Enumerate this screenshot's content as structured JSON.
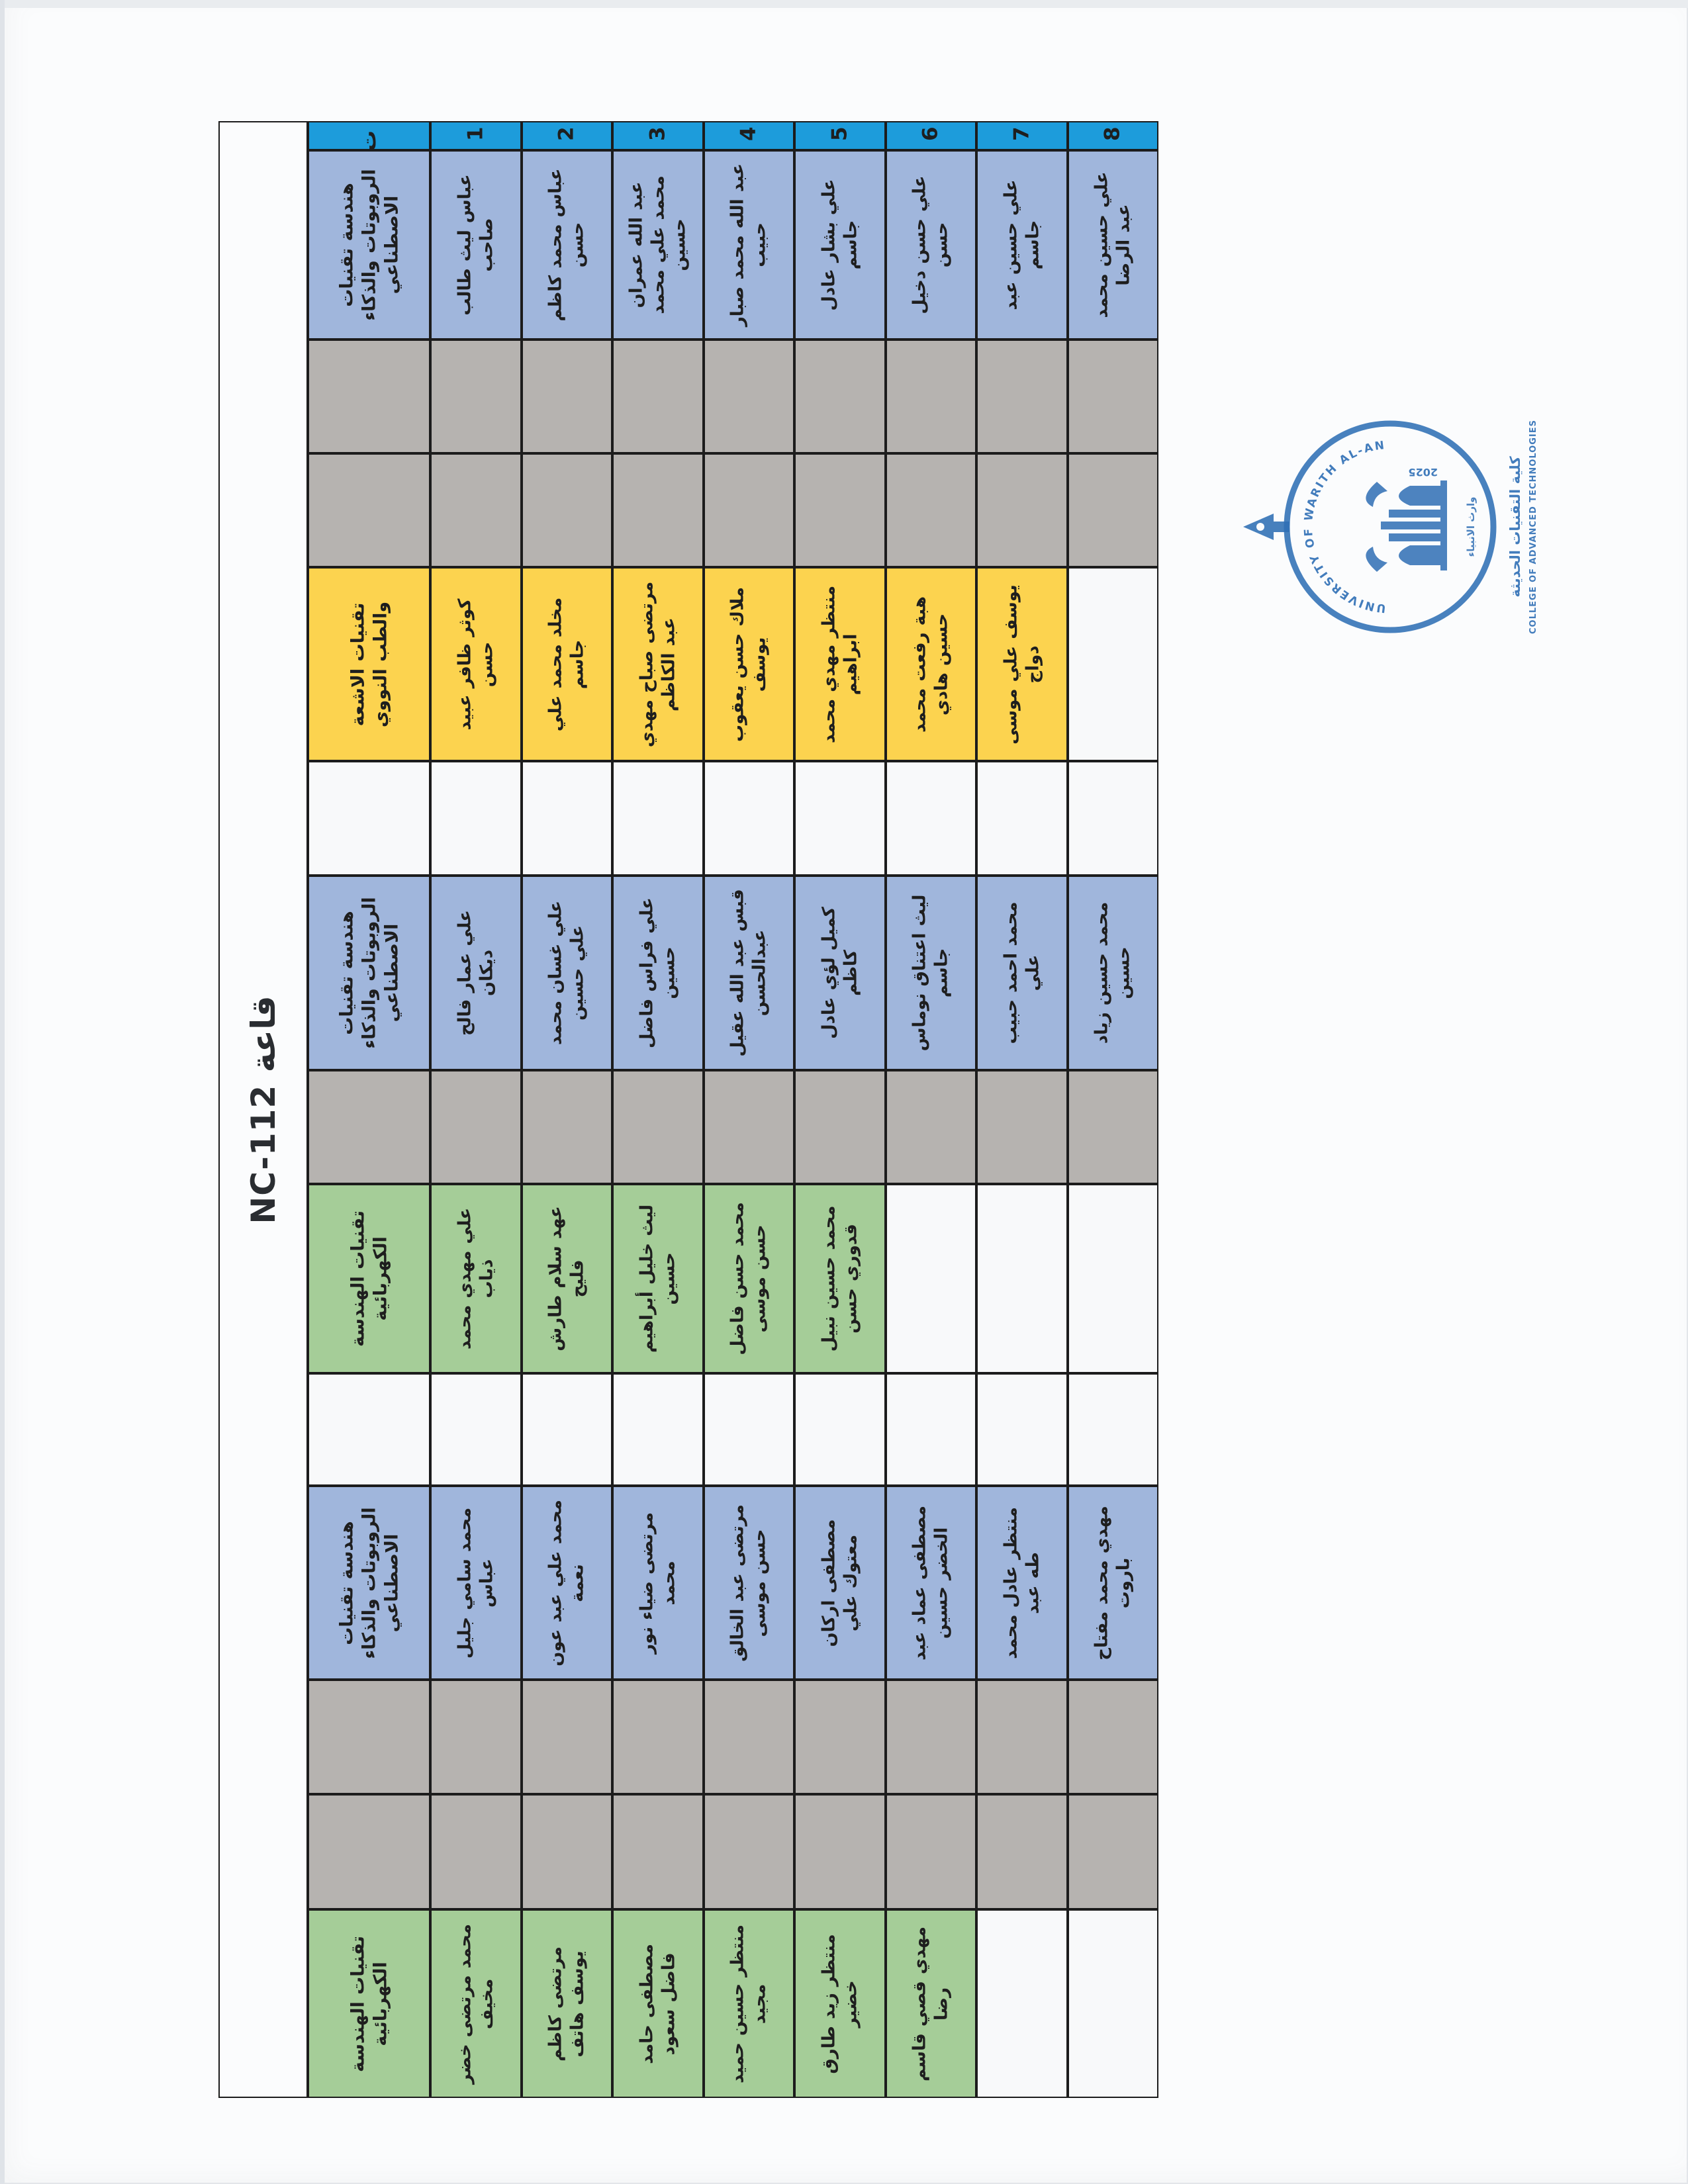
{
  "document": {
    "room_title": "قاعة NC-112",
    "serial_header": "ت",
    "seat_numbers": [
      "1",
      "2",
      "3",
      "4",
      "5",
      "6",
      "7",
      "8"
    ],
    "departments": {
      "robotics": "هندسة تقنيات الروبوتات والذكاء الاصطناعي",
      "radiology": "تقنيات الاشعة والطب النووي",
      "electrical": "تقنيات الهندسة الكهربائية"
    },
    "sections": [
      {
        "color": "periwinkle",
        "department": "هندسة تقنيات الروبوتات والذكاء الاصطناعي",
        "students": [
          "عباس ليث طالب صاحب",
          "عباس محمد كاظم حسن",
          "عبد الله عمران محمد علي محمد حسين",
          "عبد الله محمد صبار حبيب",
          "علي بشار عادل جاسم",
          "علي حسن دخيل حسن",
          "علي حسين عبد جاسم",
          "علي حسين محمد عبد الرضا"
        ]
      },
      {
        "color": "gray",
        "department": "",
        "students": [
          "",
          "",
          "",
          "",
          "",
          "",
          "",
          ""
        ]
      },
      {
        "color": "gray",
        "department": "",
        "students": [
          "",
          "",
          "",
          "",
          "",
          "",
          "",
          ""
        ]
      },
      {
        "color": "yellow",
        "department": "تقنيات الاشعة والطب النووي",
        "students": [
          "كوثر ظافر عبيد حسن",
          "مخلد محمد علي جاسم",
          "مرتضى صباح مهدي عبد الكاظم",
          "ملاك حسن يعقوب يوسف",
          "منتظر مهدي محمد ابراهيم",
          "هبة رفعت محمد حسين هادي",
          "يوسف علي موسى دواج",
          ""
        ]
      },
      {
        "color": "white",
        "department": "",
        "students": [
          "",
          "",
          "",
          "",
          "",
          "",
          "",
          ""
        ]
      },
      {
        "color": "periwinkle",
        "department": "هندسة تقنيات الروبوتات والذكاء الاصطناعي",
        "students": [
          "علي عمار فالح ديكان",
          "علي غسان محمد علي حسين",
          "علي فراس فاضل حسين",
          "قبس عبد الله عقيل عبدالحسن",
          "كميل لؤي عادل كاظم",
          "ليث اعتناق نوماس جاسم",
          "محمد احمد حبيب علي",
          "محمد حسين زياد حسين"
        ]
      },
      {
        "color": "gray",
        "department": "",
        "students": [
          "",
          "",
          "",
          "",
          "",
          "",
          "",
          ""
        ]
      },
      {
        "color": "green",
        "department": "تقنيات الهندسة الكهربائية",
        "students": [
          "علي مهدي محمد ذياب",
          "عهد سلام طارش فليح",
          "ليث خليل أبراهيم حسين",
          "محمد حسن فاضل حسن موسى",
          "محمد حسين نبيل قدوري حسن",
          "",
          "",
          ""
        ]
      },
      {
        "color": "white",
        "department": "",
        "students": [
          "",
          "",
          "",
          "",
          "",
          "",
          "",
          ""
        ]
      },
      {
        "color": "periwinkle",
        "department": "هندسة تقنيات الروبوتات والذكاء الاصطناعي",
        "students": [
          "محمد سامي جليل عباس",
          "محمد علي عبد عون نعمة",
          "مرتضى ضياء نور محمد",
          "مرتضى عبد الخالق حسن موسى",
          "مصطفى اركان معتوك علي",
          "مصطفى عماد عبد الخضر حسين",
          "منتظر عادل محمد طه عبد",
          "مهدي محمد مفتاح باروت"
        ]
      },
      {
        "color": "gray",
        "department": "",
        "students": [
          "",
          "",
          "",
          "",
          "",
          "",
          "",
          ""
        ]
      },
      {
        "color": "gray",
        "department": "",
        "students": [
          "",
          "",
          "",
          "",
          "",
          "",
          "",
          ""
        ]
      },
      {
        "color": "green",
        "department": "تقنيات الهندسة الكهربائية",
        "students": [
          "محمد مرتضى خضر مخيف",
          "مرتضى كاظم يوسف هاتف",
          "مصطفى حامد فاضل سعود",
          "منتظر حسين حميد مجيد",
          "منتظر زيد طارق خضير",
          "مهدي قصي قاسم رضا",
          "",
          ""
        ]
      }
    ],
    "stamp": {
      "ring_text": "UNIVERSITY OF WARITH AL-ANBIYA'A",
      "emblem": "وارث الانبياء",
      "year": "2025",
      "line1": "كلية التقنيات الحديثة",
      "line2": "COLLEGE OF ADVANCED TECHNOLOGIES"
    },
    "colors": {
      "header_blue": "#1d9cdb",
      "periwinkle": "#a0b6dc",
      "gray": "#b6b3b0",
      "yellow": "#fcd34f",
      "green": "#a5cd98",
      "white_cell": "#f8f9fa",
      "stamp_blue": "#2f6fb5"
    }
  }
}
